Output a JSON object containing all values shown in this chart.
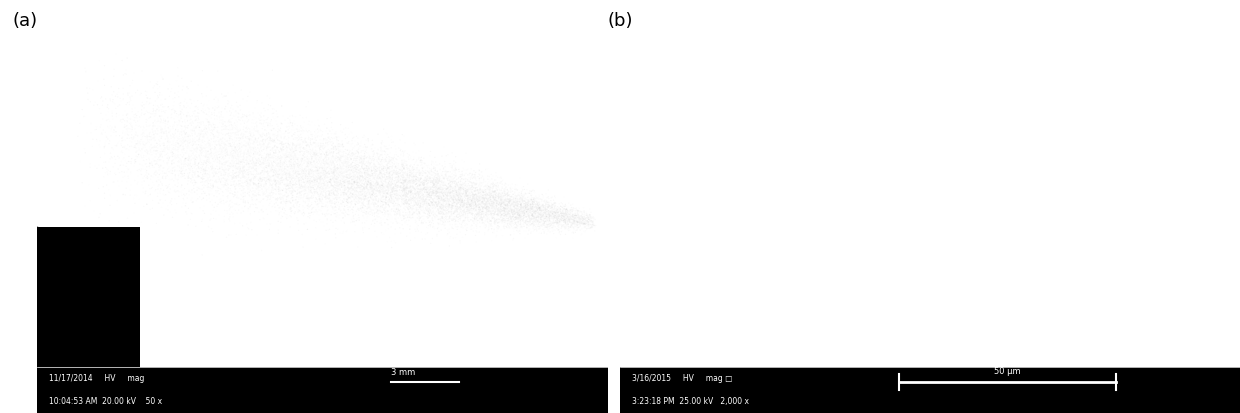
{
  "panel_a_label": "(a)",
  "panel_b_label": "(b)",
  "panel_a_bottom_line1": "11/17/2014     HV     mag                                      3 mm",
  "panel_a_bottom_line2": "10:04:53 AM  20.00 kV    50 x",
  "panel_b_bottom_line1": "3/16/2015     HV     mag □              —————  50 μm  —————",
  "panel_b_bottom_line2": "3:23:18 PM  25.00 kV   2,000 x",
  "bg_color": "#000000",
  "text_color": "#ffffff",
  "outer_bg": "#ffffff",
  "label_color": "#000000"
}
